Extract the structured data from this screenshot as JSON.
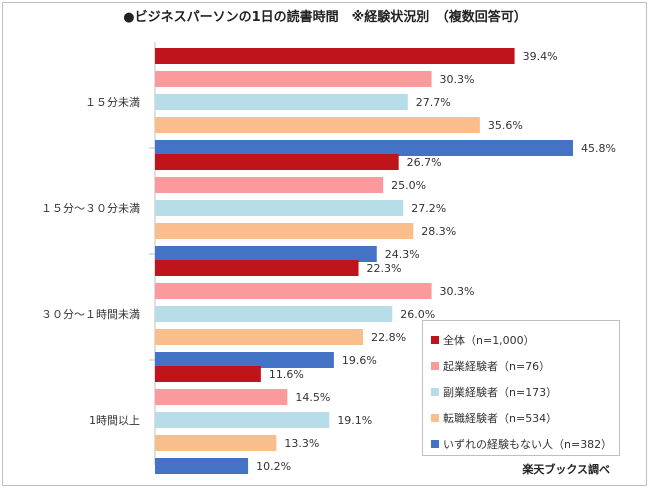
{
  "title": "●ビジネスパーソンの1日の読書時間　※経験状況別　（複数回答可）",
  "credit": "楽天ブックス調べ",
  "chart_data": {
    "type": "bar",
    "orientation": "horizontal",
    "categories": [
      "１５分未満",
      "１５分～３０分未満",
      "３０分～１時間未満",
      "1時間以上"
    ],
    "series": [
      {
        "name": "全体（n=1,000）",
        "color": "#c0141c",
        "values": [
          39.4,
          26.7,
          22.3,
          11.6
        ],
        "labels": [
          "39.4%",
          "26.7%",
          "22.3%",
          "11.6%"
        ]
      },
      {
        "name": "起業経験者（n=76）",
        "color": "#fa9a9c",
        "values": [
          30.3,
          25.0,
          30.3,
          14.5
        ],
        "labels": [
          "30.3%",
          "25.0%",
          "30.3%",
          "14.5%"
        ]
      },
      {
        "name": "副業経験者（n=173）",
        "color": "#b7dde8",
        "values": [
          27.7,
          27.2,
          26.0,
          19.1
        ],
        "labels": [
          "27.7%",
          "27.2%",
          "26.0%",
          "19.1%"
        ]
      },
      {
        "name": "転職経験者（n=534）",
        "color": "#f9be8c",
        "values": [
          35.6,
          28.3,
          22.8,
          13.3
        ],
        "labels": [
          "35.6%",
          "28.3%",
          "22.8%",
          "13.3%"
        ]
      },
      {
        "name": "いずれの経験もない人（n=382）",
        "color": "#4472c4",
        "values": [
          45.8,
          24.3,
          19.6,
          10.2
        ],
        "labels": [
          "45.8%",
          "24.3%",
          "19.6%",
          "10.2%"
        ]
      }
    ],
    "xlim": [
      0,
      50
    ],
    "legend_position": "bottom-right",
    "grid": false
  }
}
